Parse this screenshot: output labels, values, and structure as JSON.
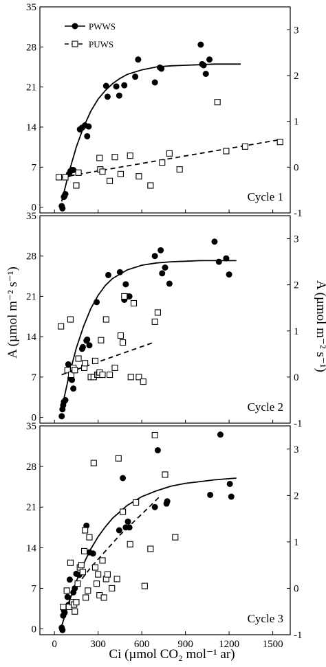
{
  "figure": {
    "ylabel": "A (µmol m⁻² s⁻¹)",
    "ylabel_right": "A (µmol m⁻² s⁻¹)",
    "xlabel": "Ci (µmol CO₂ mol⁻¹ ar)"
  },
  "legend": {
    "series": [
      {
        "name": "PWWS",
        "marker": "filled-circle",
        "line": "solid"
      },
      {
        "name": "PUWS",
        "marker": "open-square",
        "line": "dashed"
      }
    ]
  },
  "chart_data": [
    {
      "type": "scatter",
      "panel_label": "Cycle 1",
      "x_ticks": [
        0,
        300,
        600,
        900,
        1200,
        1500
      ],
      "xlim": [
        -100,
        1620
      ],
      "y_ticks": [
        0,
        7,
        14,
        21,
        28,
        35
      ],
      "ylim": [
        -1,
        35
      ],
      "y2_ticks": [
        -1,
        0,
        1,
        2,
        3
      ],
      "y2lim": [
        -1,
        3.5
      ],
      "series": [
        {
          "name": "PWWS",
          "axis": "left",
          "x": [
            50,
            55,
            65,
            70,
            75,
            100,
            110,
            120,
            130,
            175,
            190,
            210,
            225,
            235,
            355,
            365,
            425,
            445,
            480,
            555,
            575,
            690,
            725,
            735,
            1005,
            1015,
            1025,
            1040,
            1065
          ],
          "y": [
            0.2,
            -0.2,
            1.8,
            2.0,
            2.3,
            5.8,
            6.3,
            6.5,
            6.5,
            13.6,
            13.9,
            14.3,
            12.4,
            14.1,
            21.2,
            19.3,
            21.1,
            19.5,
            21.3,
            22.8,
            25.8,
            21.8,
            24.4,
            24.2,
            28.4,
            25.0,
            24.8,
            23.3,
            25.8
          ],
          "fit": {
            "x": [
              50,
              100,
              150,
              200,
              250,
              300,
              350,
              400,
              450,
              500,
              600,
              700,
              800,
              900,
              1000,
              1100,
              1200,
              1280
            ],
            "y": [
              1.0,
              6.1,
              10.5,
              14.0,
              16.8,
              18.9,
              20.4,
              21.6,
              22.5,
              23.2,
              24.0,
              24.5,
              24.7,
              24.8,
              24.9,
              25.0,
              25.0,
              25.0
            ],
            "style": "solid"
          }
        },
        {
          "name": "PUWS",
          "axis": "right",
          "x": [
            30,
            75,
            150,
            165,
            310,
            315,
            330,
            380,
            415,
            455,
            520,
            580,
            660,
            740,
            790,
            860,
            1120,
            1180,
            1310,
            1550
          ],
          "y": [
            -0.22,
            -0.22,
            -0.4,
            -0.12,
            0.2,
            -0.05,
            -0.1,
            -0.3,
            0.22,
            -0.15,
            0.25,
            -0.2,
            -0.4,
            0.1,
            0.3,
            -0.05,
            1.42,
            0.35,
            0.45,
            0.55
          ],
          "fit": {
            "x": [
              50,
              1550
            ],
            "y": [
              -0.22,
              0.6
            ],
            "style": "dashed"
          }
        }
      ]
    },
    {
      "type": "scatter",
      "panel_label": "Cycle 2",
      "x_ticks": [
        0,
        300,
        600,
        900,
        1200,
        1500
      ],
      "xlim": [
        -100,
        1620
      ],
      "y_ticks": [
        0,
        7,
        14,
        21,
        28,
        35
      ],
      "ylim": [
        -1,
        35
      ],
      "y2_ticks": [
        -1,
        0,
        1,
        2,
        3
      ],
      "y2lim": [
        -1,
        3.5
      ],
      "series": [
        {
          "name": "PWWS",
          "axis": "left",
          "x": [
            50,
            55,
            60,
            65,
            75,
            95,
            110,
            120,
            130,
            190,
            195,
            220,
            225,
            240,
            290,
            370,
            450,
            480,
            490,
            500,
            515,
            690,
            730,
            740,
            760,
            790,
            1100,
            1130,
            1180,
            1200
          ],
          "y": [
            0.2,
            1.4,
            2.1,
            2.7,
            3.0,
            9.2,
            6.8,
            6.5,
            5.0,
            11.9,
            12.2,
            13.3,
            13.5,
            12.5,
            20.0,
            24.7,
            25.2,
            20.4,
            23.1,
            21.0,
            21.0,
            28.0,
            29.0,
            25.0,
            26.0,
            23.2,
            30.5,
            27.0,
            27.6,
            24.8
          ],
          "fit": {
            "x": [
              50,
              100,
              150,
              200,
              250,
              300,
              350,
              400,
              500,
              600,
              700,
              800,
              900,
              1000,
              1100,
              1250
            ],
            "y": [
              1.5,
              7.2,
              12.0,
              15.8,
              18.9,
              21.2,
              22.9,
              24.1,
              25.6,
              26.4,
              26.8,
              27.0,
              27.1,
              27.2,
              27.2,
              27.2
            ],
            "style": "solid"
          }
        },
        {
          "name": "PUWS",
          "axis": "right",
          "x": [
            45,
            90,
            110,
            115,
            130,
            140,
            165,
            205,
            210,
            250,
            270,
            280,
            295,
            305,
            310,
            320,
            330,
            355,
            380,
            415,
            455,
            470,
            480,
            525,
            545,
            580,
            610,
            690,
            710
          ],
          "y": [
            1.1,
            0.15,
            1.25,
            0.05,
            0.2,
            0.15,
            0.4,
            0.2,
            0.3,
            0.0,
            0.0,
            0.35,
            0.05,
            0.05,
            0.1,
            0.8,
            0.05,
            1.25,
            0.05,
            0.2,
            0.9,
            0.75,
            1.75,
            0.0,
            1.6,
            0.0,
            -0.1,
            1.2,
            1.4
          ],
          "fit": {
            "x": [
              50,
              680
            ],
            "y": [
              0.05,
              0.75
            ],
            "style": "dashed"
          }
        }
      ]
    },
    {
      "type": "scatter",
      "panel_label": "Cycle 3",
      "x_ticks": [
        0,
        300,
        600,
        900,
        1200,
        1500
      ],
      "xlim": [
        -100,
        1620
      ],
      "xlabel": "Ci (µmol CO₂ mol⁻¹ ar)",
      "y_ticks": [
        0,
        7,
        14,
        21,
        28,
        35
      ],
      "ylim": [
        -1,
        35
      ],
      "y2_ticks": [
        -1,
        0,
        1,
        2,
        3
      ],
      "y2lim": [
        -1,
        3.5
      ],
      "series": [
        {
          "name": "PWWS",
          "axis": "left",
          "x": [
            50,
            55,
            60,
            65,
            70,
            90,
            100,
            105,
            130,
            140,
            150,
            170,
            220,
            240,
            265,
            445,
            470,
            490,
            505,
            515,
            690,
            710,
            770,
            775,
            1070,
            1140,
            1205,
            1215
          ],
          "y": [
            0.2,
            -0.2,
            2.3,
            3.2,
            2.8,
            5.5,
            4.2,
            8.5,
            6.3,
            7.0,
            9.5,
            9.3,
            17.8,
            13.2,
            13.0,
            17.0,
            26.0,
            17.5,
            18.5,
            17.5,
            21.0,
            30.8,
            21.6,
            22.0,
            23.1,
            33.5,
            25.0,
            22.8
          ],
          "fit": {
            "x": [
              50,
              100,
              150,
              200,
              250,
              300,
              350,
              400,
              500,
              600,
              700,
              800,
              900,
              1000,
              1100,
              1250
            ],
            "y": [
              0.5,
              4.6,
              8.2,
              11.2,
              13.8,
              15.9,
              17.6,
              19.1,
              21.3,
              22.8,
              23.8,
              24.6,
              25.1,
              25.4,
              25.7,
              26.0
            ],
            "style": "solid"
          }
        },
        {
          "name": "PUWS",
          "axis": "right",
          "x": [
            60,
            85,
            100,
            110,
            125,
            135,
            140,
            150,
            160,
            175,
            185,
            195,
            205,
            210,
            215,
            230,
            240,
            270,
            280,
            290,
            300,
            310,
            330,
            340,
            355,
            365,
            395,
            430,
            440,
            470,
            520,
            560,
            620,
            660,
            690,
            760,
            830
          ],
          "y": [
            -0.4,
            -0.05,
            -0.4,
            0.55,
            -0.3,
            -0.35,
            -0.5,
            -0.3,
            0.1,
            0.45,
            0.5,
            0.35,
            0.8,
            1.25,
            -0.2,
            -0.05,
            1.1,
            2.7,
            0.45,
            0.1,
            0.3,
            -0.15,
            0.6,
            -0.2,
            0.2,
            0.3,
            0.0,
            0.2,
            2.8,
            1.65,
            0.95,
            1.85,
            0.05,
            0.85,
            3.3,
            2.45,
            1.1
          ],
          "fit": {
            "x": [
              70,
              150,
              250,
              350,
              450,
              550,
              650,
              730
            ],
            "y": [
              -0.4,
              0.05,
              0.45,
              0.8,
              1.15,
              1.45,
              1.75,
              2.0
            ],
            "style": "dashed"
          }
        }
      ]
    }
  ]
}
